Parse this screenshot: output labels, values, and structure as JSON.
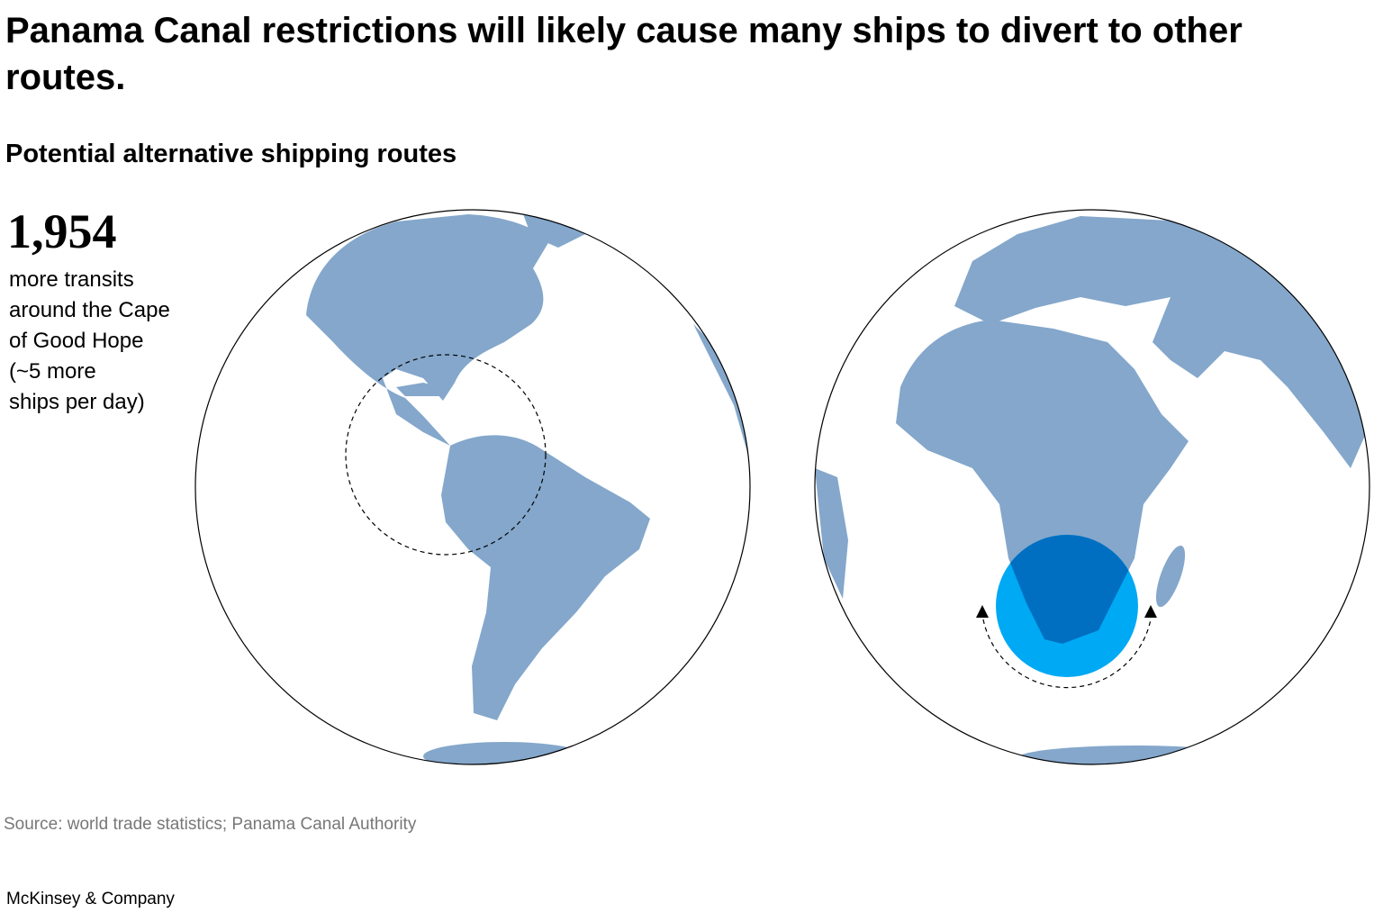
{
  "header": {
    "title": "Panama Canal restrictions will likely cause many ships to divert to other routes.",
    "subtitle": "Potential alternative shipping routes"
  },
  "stat": {
    "value": "1,954",
    "lines": [
      "more transits",
      "around the Cape",
      "of Good Hope",
      "(~5 more",
      "ships per day)"
    ]
  },
  "source": "Source: world trade statistics; Panama Canal Authority",
  "footer": "McKinsey & Company"
}
